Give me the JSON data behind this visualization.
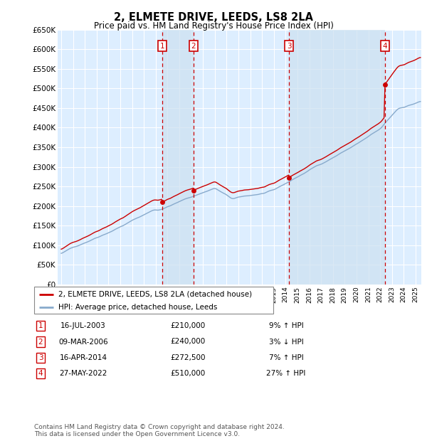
{
  "title": "2, ELMETE DRIVE, LEEDS, LS8 2LA",
  "subtitle": "Price paid vs. HM Land Registry's House Price Index (HPI)",
  "ylim": [
    0,
    650000
  ],
  "yticks": [
    0,
    50000,
    100000,
    150000,
    200000,
    250000,
    300000,
    350000,
    400000,
    450000,
    500000,
    550000,
    600000,
    650000
  ],
  "xlim_start": 1994.7,
  "xlim_end": 2025.5,
  "background_color": "#ffffff",
  "plot_bg_color": "#ddeeff",
  "grid_color": "#ccddee",
  "transactions": [
    {
      "num": 1,
      "date": "16-JUL-2003",
      "price": 210000,
      "year": 2003.54,
      "hpi_pct": "9%",
      "hpi_dir": "↑"
    },
    {
      "num": 2,
      "date": "09-MAR-2006",
      "price": 240000,
      "year": 2006.19,
      "hpi_pct": "3%",
      "hpi_dir": "↓"
    },
    {
      "num": 3,
      "date": "16-APR-2014",
      "price": 272500,
      "year": 2014.29,
      "hpi_pct": "7%",
      "hpi_dir": "↑"
    },
    {
      "num": 4,
      "date": "27-MAY-2022",
      "price": 510000,
      "year": 2022.41,
      "hpi_pct": "27%",
      "hpi_dir": "↑"
    }
  ],
  "legend_line1": "2, ELMETE DRIVE, LEEDS, LS8 2LA (detached house)",
  "legend_line2": "HPI: Average price, detached house, Leeds",
  "footer": "Contains HM Land Registry data © Crown copyright and database right 2024.\nThis data is licensed under the Open Government Licence v3.0.",
  "price_line_color": "#cc0000",
  "hpi_line_color": "#88aacc",
  "vline_color": "#cc0000",
  "marker_box_color": "#cc0000",
  "shading_color": "#cce0f0"
}
